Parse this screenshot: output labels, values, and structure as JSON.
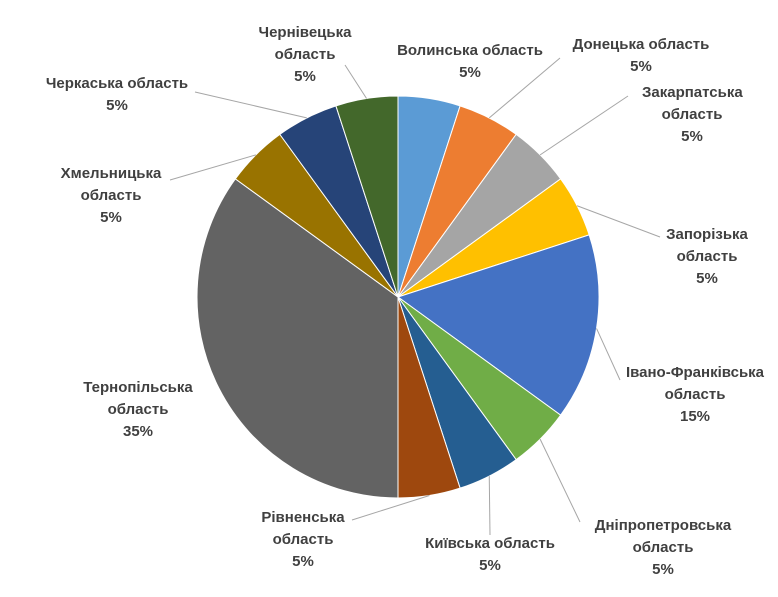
{
  "chart_data": {
    "type": "pie",
    "categories": [
      "Волинська область",
      "Донецька область",
      "Закарпатська область",
      "Запорізька область",
      "Івано-Франківська область",
      "Дніпропетровська область",
      "Київська область",
      "Рівненська область",
      "Тернопільська область",
      "Хмельницька область",
      "Черкаська область",
      "Чернівецька область"
    ],
    "values": [
      5,
      5,
      5,
      5,
      15,
      5,
      5,
      5,
      35,
      5,
      5,
      5
    ],
    "value_labels": [
      "5%",
      "5%",
      "5%",
      "5%",
      "15%",
      "5%",
      "5%",
      "5%",
      "35%",
      "5%",
      "5%",
      "5%"
    ],
    "colors": [
      "#5b9bd5",
      "#ed7d31",
      "#a5a5a5",
      "#ffc000",
      "#4472c4",
      "#70ad47",
      "#255e91",
      "#9e480e",
      "#636363",
      "#997300",
      "#264478",
      "#43682b"
    ]
  }
}
